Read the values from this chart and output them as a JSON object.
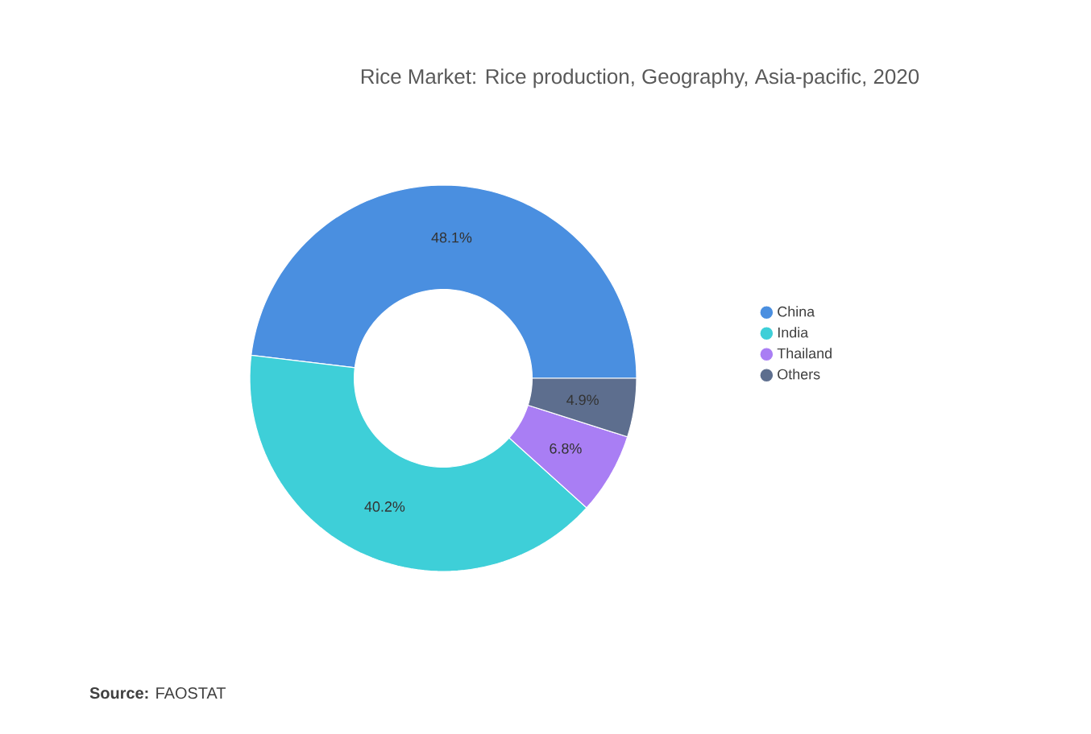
{
  "chart_data": {
    "type": "donut",
    "title": "Rice Market: Rice production, Geography, Asia-pacific, 2020",
    "categories": [
      "China",
      "India",
      "Thailand",
      "Others"
    ],
    "values": [
      48.1,
      40.2,
      6.8,
      4.9
    ],
    "colors": [
      "#4a8fe0",
      "#3ecfd8",
      "#a97ef4",
      "#5d6e8e"
    ],
    "value_labels": [
      "48.1%",
      "40.2%",
      "6.8%",
      "4.9%"
    ],
    "legend": "right",
    "annotations": [
      "**Source:** FAOSTAT"
    ]
  }
}
